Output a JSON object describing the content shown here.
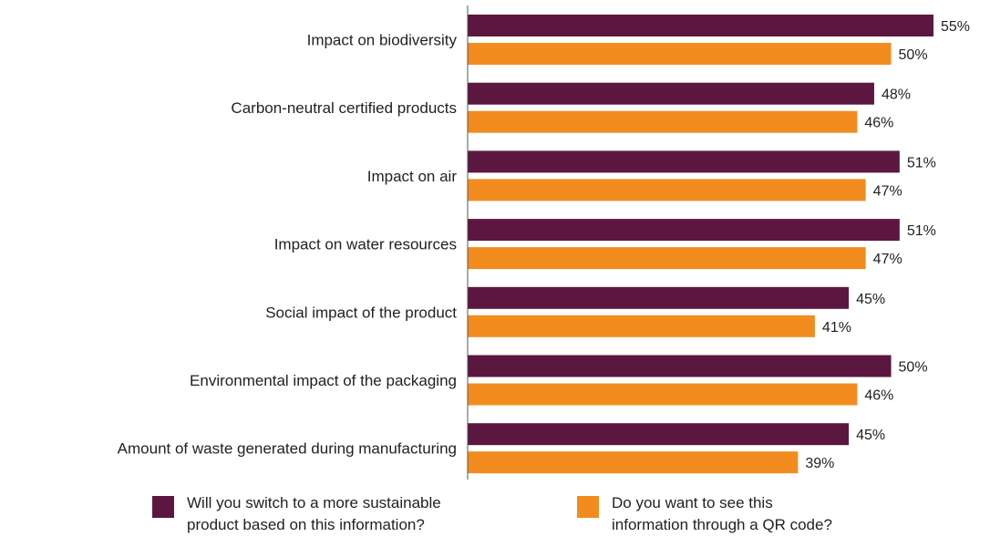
{
  "chart_data": {
    "type": "bar",
    "orientation": "horizontal",
    "categories": [
      "Impact on biodiversity",
      "Carbon-neutral certified products",
      "Impact on air",
      "Impact on water resources",
      "Social impact of the product",
      "Environmental impact of the packaging",
      "Amount of waste generated during manufacturing"
    ],
    "series": [
      {
        "name": "Will you switch to a more sustainable product based on this information?",
        "color": "#5c1740",
        "values": [
          55,
          48,
          51,
          51,
          45,
          50,
          45
        ],
        "labels": [
          "55%",
          "48%",
          "51%",
          "51%",
          "45%",
          "50%",
          "45%"
        ]
      },
      {
        "name": "Do you want to see this information through a QR code?",
        "color": "#f28c1f",
        "values": [
          50,
          46,
          47,
          47,
          41,
          46,
          39
        ],
        "labels": [
          "50%",
          "46%",
          "47%",
          "47%",
          "41%",
          "46%",
          "39%"
        ]
      }
    ],
    "xlim": [
      0,
      55
    ],
    "grid": false,
    "legend_position": "bottom"
  },
  "legend": {
    "items": [
      {
        "line1": "Will you switch to a more sustainable",
        "line2": "product based on this information?",
        "color": "#5c1740"
      },
      {
        "line1": "Do you want to see this",
        "line2": "information through a QR code?",
        "color": "#f28c1f"
      }
    ]
  }
}
